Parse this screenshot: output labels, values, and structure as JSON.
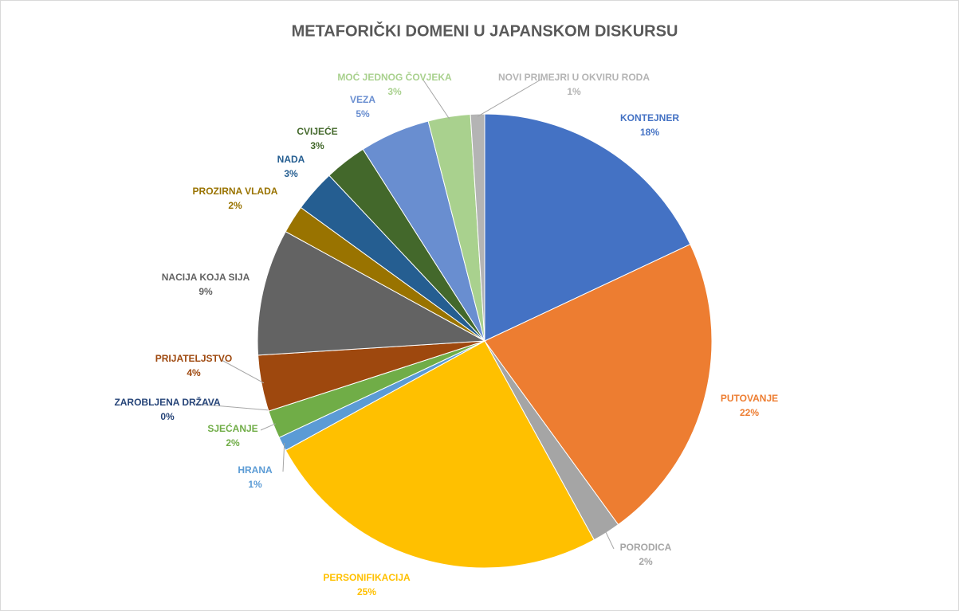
{
  "chart_data": {
    "type": "pie",
    "title": "METAFORIČKI DOMENI U JAPANSKOM DISKURSU",
    "categories": [
      "KONTEJNER",
      "PUTOVANJE",
      "PORODICA",
      "PERSONIFIKACIJA",
      "HRANA",
      "SJEĆANJE",
      "ZAROBLJENA DRŽAVA",
      "PRIJATELJSTVO",
      "NACIJA KOJA SIJA",
      "PROZIRNA VLADA",
      "NADA",
      "CVIJEĆE",
      "VEZA",
      "MOĆ JEDNOG ČOVJEKA",
      "NOVI PRIMEJRI U OKVIRU RODA"
    ],
    "values": [
      18,
      22,
      2,
      25,
      1,
      2,
      0,
      4,
      9,
      2,
      3,
      3,
      5,
      3,
      1
    ],
    "value_labels": [
      "18%",
      "22%",
      "2%",
      "25%",
      "1%",
      "2%",
      "0%",
      "4%",
      "9%",
      "2%",
      "3%",
      "3%",
      "5%",
      "3%",
      "1%"
    ],
    "colors": [
      "#4472c4",
      "#ed7d31",
      "#a5a5a5",
      "#ffc000",
      "#5b9bd5",
      "#70ad47",
      "#264478",
      "#9e480e",
      "#636363",
      "#997300",
      "#255e91",
      "#43682b",
      "#698ed0",
      "#a9d18e",
      "#b4b4b4"
    ]
  }
}
